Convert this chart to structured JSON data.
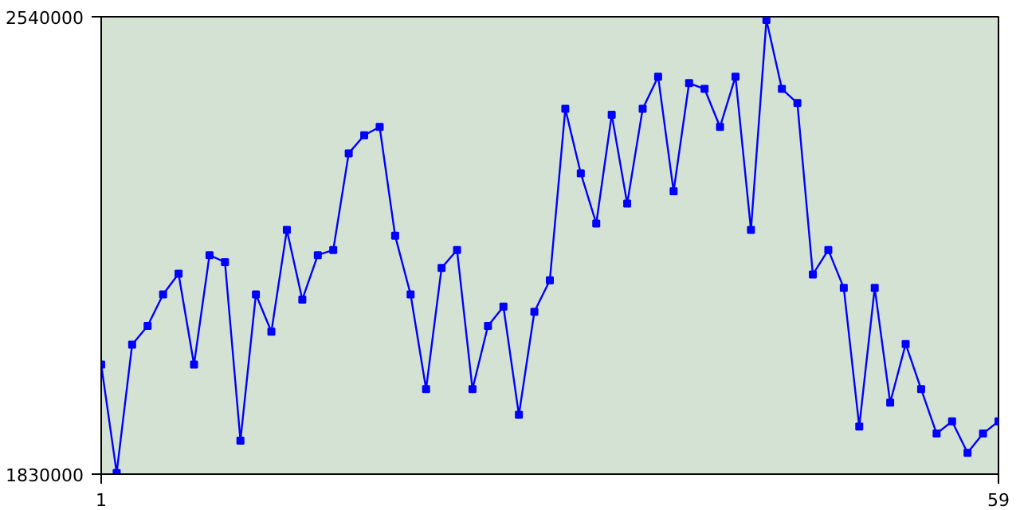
{
  "chart_data": {
    "type": "line",
    "x": [
      1,
      2,
      3,
      4,
      5,
      6,
      7,
      8,
      9,
      10,
      11,
      12,
      13,
      14,
      15,
      16,
      17,
      18,
      19,
      20,
      21,
      22,
      23,
      24,
      25,
      26,
      27,
      28,
      29,
      30,
      31,
      32,
      33,
      34,
      35,
      36,
      37,
      38,
      39,
      40,
      41,
      42,
      43,
      44,
      45,
      46,
      47,
      48,
      49,
      50,
      51,
      52,
      53,
      54,
      55,
      56,
      57,
      58,
      59
    ],
    "series": [
      {
        "color": "#0000ff",
        "values": [
          2000000,
          1832000,
          2031000,
          2060000,
          2109000,
          2141000,
          2000000,
          2170000,
          2159000,
          1882000,
          2109000,
          2051000,
          2209000,
          2101000,
          2170000,
          2178000,
          2328000,
          2356000,
          2369000,
          2200000,
          2109000,
          1962000,
          2150000,
          2178000,
          1962000,
          2060000,
          2090000,
          1922000,
          2082000,
          2131000,
          2397000,
          2297000,
          2219000,
          2388000,
          2250000,
          2397000,
          2447000,
          2269000,
          2437000,
          2428000,
          2369000,
          2447000,
          2209000,
          2535000,
          2428000,
          2406000,
          2140000,
          2178000,
          2119000,
          1904000,
          2119000,
          1941000,
          2032000,
          1962000,
          1893000,
          1912000,
          1863000,
          1893000,
          1912000
        ]
      }
    ],
    "xlim": [
      1,
      59
    ],
    "ylim": [
      1830000,
      2540000
    ],
    "xticks": [
      1,
      59
    ],
    "yticks": [
      1830000,
      2540000
    ],
    "marker": "square",
    "line_style": "solid"
  }
}
